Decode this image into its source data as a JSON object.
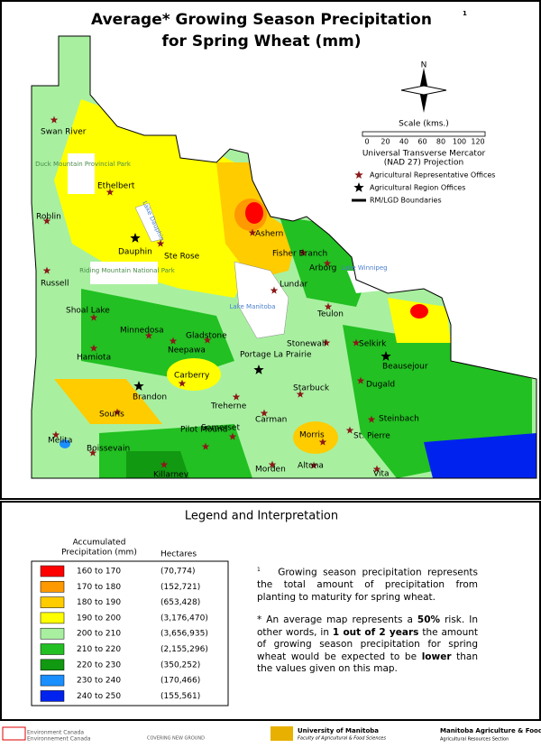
{
  "header": {
    "title_line1": "Average* Growing Season Precipitation",
    "footnote_marker": "1",
    "title_line2": "for Spring Wheat (mm)"
  },
  "map": {
    "north": "N",
    "scale_title": "Scale (kms.)",
    "scale_ticks": [
      "0",
      "20",
      "40",
      "60",
      "80",
      "100",
      "120"
    ],
    "projection_line1": "Universal Transverse Mercator",
    "projection_line2": "(NAD 27) Projection",
    "symbols": [
      "Agricultural Representative Offices",
      "Agricultural Region Offices",
      "RM/LGD Boundaries"
    ],
    "features": [
      "Duck Mountain Provincial Park",
      "Riding Mountain National Park",
      "Lake Manitoba",
      "Lake Winnipeg",
      "Lake Dauphin"
    ],
    "towns": [
      "Swan River",
      "Ethelbert",
      "Roblin",
      "Dauphin",
      "Ste Rose",
      "Russell",
      "Shoal Lake",
      "Minnedosa",
      "Neepawa",
      "Gladstone",
      "Hamiota",
      "Carberry",
      "Brandon",
      "Souris",
      "Melita",
      "Boissevain",
      "Killarney",
      "Pilot Mound",
      "Treherne",
      "Somerset",
      "Carman",
      "Morden",
      "Altona",
      "Morris",
      "Vita",
      "St. Pierre",
      "Steinbach",
      "Dugald",
      "Beausejour",
      "Selkirk",
      "Stonewall",
      "Teulon",
      "Arborg",
      "Fisher Branch",
      "Ashern",
      "Lundar",
      "Portage La Prairie",
      "Starbuck"
    ]
  },
  "legend": {
    "title": "Legend and Interpretation",
    "col1_line1": "Accumulated",
    "col1_line2": "Precipitation (mm)",
    "col2": "Hectares",
    "rows": [
      [
        "160 to 170",
        "(70,774)",
        "#ff0000"
      ],
      [
        "170 to 180",
        "(152,721)",
        "#ff9900"
      ],
      [
        "180 to 190",
        "(653,428)",
        "#ffcc00"
      ],
      [
        "190 to 200",
        "(3,176,470)",
        "#ffff00"
      ],
      [
        "200 to 210",
        "(3,656,935)",
        "#a8f0a0"
      ],
      [
        "210 to 220",
        "(2,155,296)",
        "#22c022"
      ],
      [
        "220 to 230",
        "(350,252)",
        "#119911"
      ],
      [
        "230 to 240",
        "(170,466)",
        "#1a8fff"
      ],
      [
        "240 to 250",
        "(155,561)",
        "#0022ee"
      ]
    ],
    "note_marker": "1",
    "note": "Growing season precipitation represents the total amount of precipitation from planting to maturity for spring wheat.",
    "note2": [
      "* An average map represents a ",
      "50%",
      " risk. In other words, in ",
      "1 out of 2 years",
      " the amount of growing season precipitation for spring wheat would be expected to be ",
      "lower",
      " than the values given on this map."
    ]
  },
  "footer": {
    "env_en": "Environment Canada",
    "env_fr": "Environnement Canada",
    "cng": "COVERING NEW GROUND",
    "um": "University of Manitoba",
    "um_sub": "Faculty of Agricultural & Food Sciences",
    "mb": "Manitoba Agriculture & Food",
    "mb_sub": "Agricultural Resources Section"
  }
}
